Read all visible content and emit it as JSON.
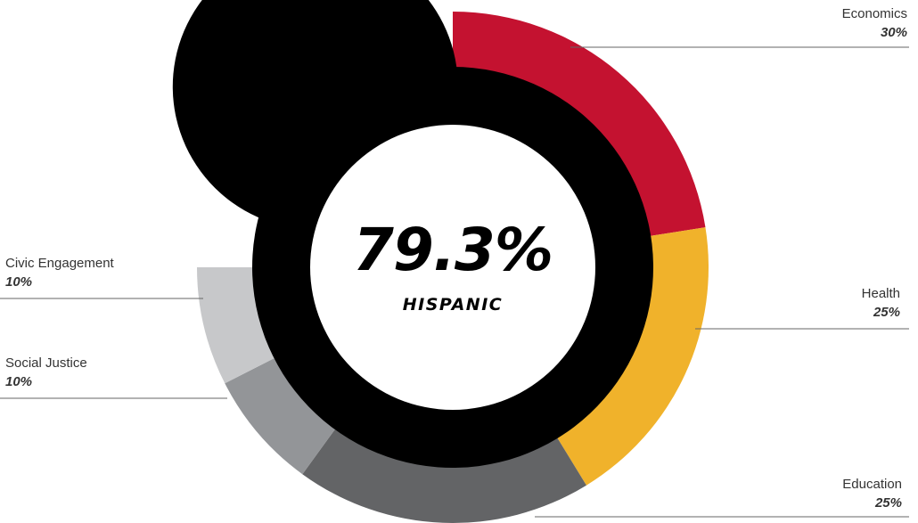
{
  "chart_data": {
    "type": "pie",
    "center": {
      "value": "79.3%",
      "label": "HISPANIC",
      "share": 79.3
    },
    "inner_ring": {
      "share": 79.3,
      "color": "#000000",
      "remainder_color": "#efefef"
    },
    "categories": [
      "Economics",
      "Health",
      "Education",
      "Social Justice",
      "Civic Engagement"
    ],
    "values": [
      30,
      25,
      25,
      10,
      10
    ],
    "value_labels": [
      "30%",
      "25%",
      "25%",
      "10%",
      "10%"
    ],
    "colors": [
      "#c41230",
      "#f0b22b",
      "#636466",
      "#939598",
      "#c7c8ca"
    ]
  }
}
